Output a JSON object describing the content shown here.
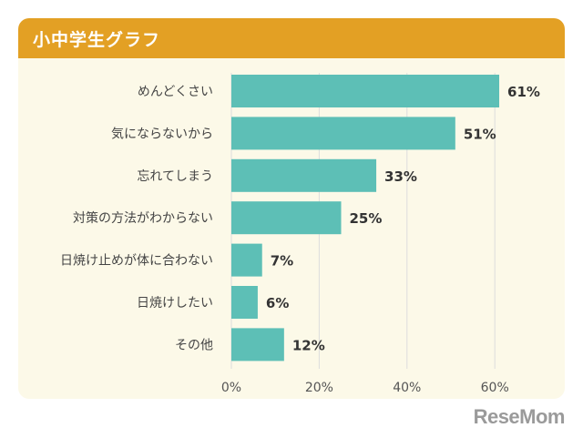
{
  "header": {
    "title": "小中学生グラフ"
  },
  "logo": "ReseMom",
  "colors": {
    "bar": "#5dbfb6",
    "header": "#e3a024",
    "panel": "#fcf9e8",
    "grid": "#dddddd"
  },
  "chart_data": {
    "type": "bar",
    "orientation": "horizontal",
    "title": "小中学生グラフ",
    "categories": [
      "めんどくさい",
      "気にならないから",
      "忘れてしまう",
      "対策の方法がわからない",
      "日焼け止めが体に合わない",
      "日焼けしたい",
      "その他"
    ],
    "values": [
      61,
      51,
      33,
      25,
      7,
      6,
      12
    ],
    "value_labels": [
      "61%",
      "51%",
      "33%",
      "25%",
      "7%",
      "6%",
      "12%"
    ],
    "xlim": [
      0,
      60
    ],
    "xticks": [
      0,
      20,
      40,
      60
    ],
    "xtick_labels": [
      "0%",
      "20%",
      "40%",
      "60%"
    ],
    "grid": "vertical",
    "legend": "none"
  }
}
